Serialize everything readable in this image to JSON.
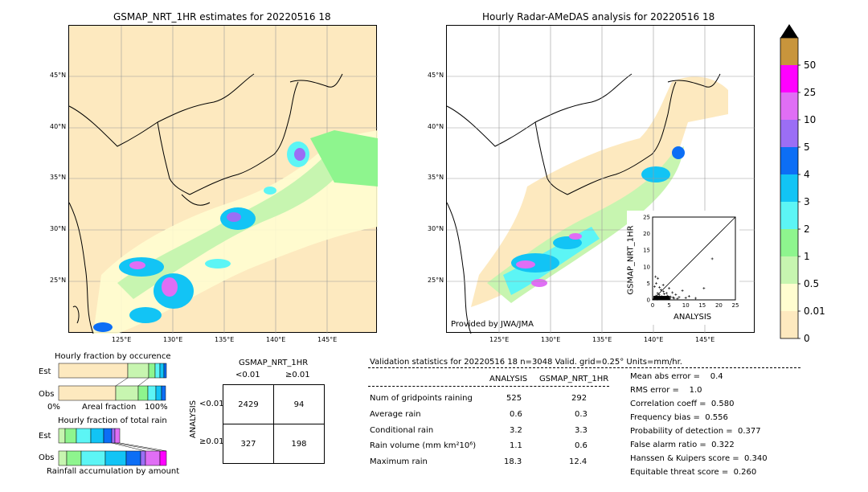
{
  "left_map": {
    "title": "GSMAP_NRT_1HR estimates for 20220516 18",
    "lat_labels": [
      "45°N",
      "40°N",
      "35°N",
      "30°N",
      "25°N"
    ],
    "lon_labels": [
      "125°E",
      "130°E",
      "135°E",
      "140°E",
      "145°E"
    ]
  },
  "right_map": {
    "title": "Hourly Radar-AMeDAS analysis for 20220516 18",
    "lat_labels": [
      "45°N",
      "40°N",
      "35°N",
      "30°N",
      "25°N"
    ],
    "lon_labels": [
      "125°E",
      "130°E",
      "135°E",
      "140°E",
      "145°E"
    ],
    "credit": "Provided by JWA/JMA"
  },
  "colorbar": {
    "labels": [
      "0",
      "0.01",
      "0.5",
      "1",
      "2",
      "3",
      "4",
      "5",
      "10",
      "25",
      "50"
    ],
    "colors": [
      "#fde9bf",
      "#fffdd0",
      "#c7f5b0",
      "#8ef58e",
      "#5cf5f5",
      "#12c4f5",
      "#0c6ef5",
      "#9b6ef5",
      "#e06ef5",
      "#ff00ff",
      "#c8953c"
    ]
  },
  "occurrence": {
    "title": "Hourly fraction by occurence",
    "est_label": "Est",
    "obs_label": "Obs",
    "axis_left": "0%",
    "axis_mid": "Areal fraction",
    "axis_right": "100%"
  },
  "total_rain": {
    "title": "Hourly fraction of total rain",
    "est_label": "Est",
    "obs_label": "Obs",
    "footer": "Rainfall accumulation by amount"
  },
  "contingency": {
    "header": "GSMAP_NRT_1HR",
    "col1": "<0.01",
    "col2": "≥0.01",
    "row_axis": "ANALYSIS",
    "row1": "<0.01",
    "row2": "≥0.01",
    "cells": [
      [
        "2429",
        "94"
      ],
      [
        "327",
        "198"
      ]
    ]
  },
  "validation": {
    "header": "Validation statistics for 20220516 18  n=3048 Valid. grid=0.25° Units=mm/hr.",
    "col_analysis": "ANALYSIS",
    "col_gsmap": "GSMAP_NRT_1HR",
    "rows": [
      {
        "label": "Num of gridpoints raining",
        "a": "525",
        "g": "292"
      },
      {
        "label": "Average rain",
        "a": "0.6",
        "g": "0.3"
      },
      {
        "label": "Conditional rain",
        "a": "3.2",
        "g": "3.3"
      },
      {
        "label": "Rain volume (mm km²10⁶)",
        "a": "1.1",
        "g": "0.6"
      },
      {
        "label": "Maximum rain",
        "a": "18.3",
        "g": "12.4"
      }
    ],
    "scores": [
      "Mean abs error =    0.4",
      "RMS error =    1.0",
      "Correlation coeff =  0.580",
      "Frequency bias =  0.556",
      "Probability of detection =  0.377",
      "False alarm ratio =  0.322",
      "Hanssen & Kuipers score =  0.340",
      "Equitable threat score =  0.260"
    ]
  },
  "chart_data": {
    "type": "scatter",
    "xlabel": "ANALYSIS",
    "ylabel": "GSMAP_NRT_1HR",
    "xlim": [
      0,
      25
    ],
    "ylim": [
      0,
      25
    ],
    "ticks": [
      "0",
      "5",
      "10",
      "15",
      "20",
      "25"
    ],
    "x": [
      0.5,
      0.8,
      1.0,
      1.2,
      1.5,
      1.8,
      2.0,
      2.3,
      2.5,
      2.8,
      3.0,
      3.3,
      3.5,
      4.0,
      4.5,
      5.0,
      5.5,
      6.0,
      6.5,
      7.0,
      8.0,
      9.0,
      10.0,
      11.0,
      13.0,
      18.0,
      0.6,
      1.1,
      1.6,
      2.1,
      3.2,
      4.2,
      5.2,
      7.5,
      0.9,
      1.4,
      2.6,
      3.8,
      6.2,
      15.5
    ],
    "y": [
      0.3,
      0.6,
      1.2,
      0.4,
      2.0,
      0.8,
      1.5,
      0.5,
      3.0,
      1.0,
      0.7,
      2.5,
      1.8,
      0.6,
      1.2,
      3.5,
      0.9,
      2.2,
      0.5,
      1.6,
      0.8,
      2.8,
      0.6,
      1.1,
      0.5,
      12.4,
      4.0,
      5.0,
      6.5,
      3.8,
      4.5,
      2.0,
      0.3,
      0.4,
      7.0,
      0.2,
      0.9,
      0.3,
      0.7,
      3.5
    ]
  }
}
